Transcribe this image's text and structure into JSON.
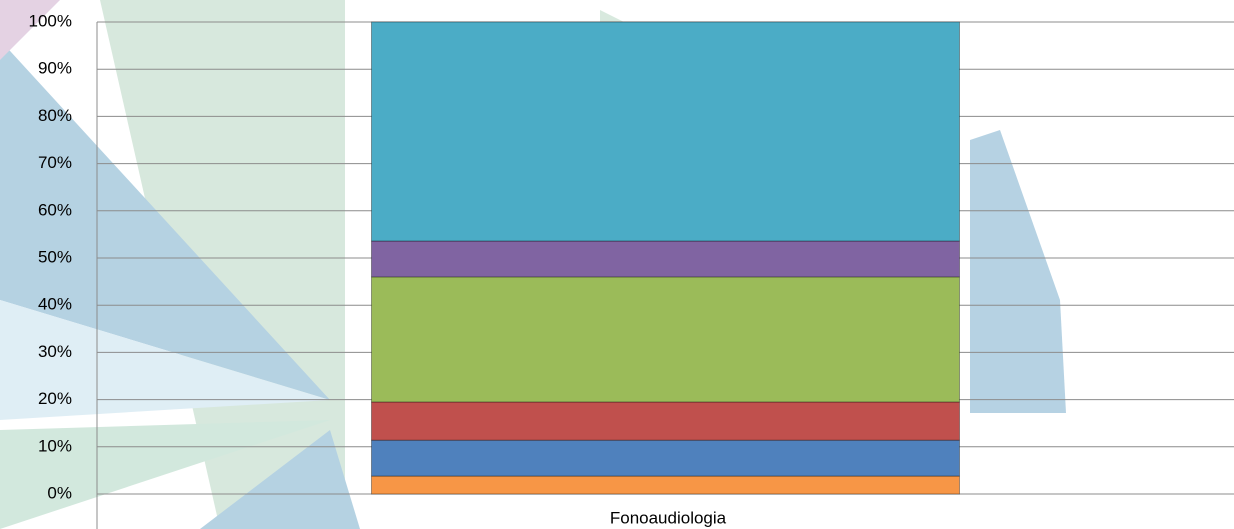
{
  "chart_data": {
    "type": "stacked_bar",
    "categories": [
      "Fonoaudiologia"
    ],
    "series": [
      {
        "color": "#f79646",
        "values": [
          3.8
        ]
      },
      {
        "color": "#4f81bd",
        "values": [
          7.6
        ]
      },
      {
        "color": "#c0504d",
        "values": [
          8.1
        ]
      },
      {
        "color": "#9bbb59",
        "values": [
          26.5
        ]
      },
      {
        "color": "#8064a2",
        "values": [
          7.6
        ]
      },
      {
        "color": "#4bacc6",
        "values": [
          46.4
        ]
      }
    ],
    "ylim": [
      0,
      100
    ],
    "yticks": [
      {
        "value": 0,
        "label": "0%"
      },
      {
        "value": 10,
        "label": "10%"
      },
      {
        "value": 20,
        "label": "20%"
      },
      {
        "value": 30,
        "label": "30%"
      },
      {
        "value": 40,
        "label": "40%"
      },
      {
        "value": 50,
        "label": "50%"
      },
      {
        "value": 60,
        "label": "60%"
      },
      {
        "value": 70,
        "label": "70%"
      },
      {
        "value": 80,
        "label": "80%"
      },
      {
        "value": 90,
        "label": "90%"
      },
      {
        "value": 100,
        "label": "100%"
      }
    ],
    "grid": true
  }
}
